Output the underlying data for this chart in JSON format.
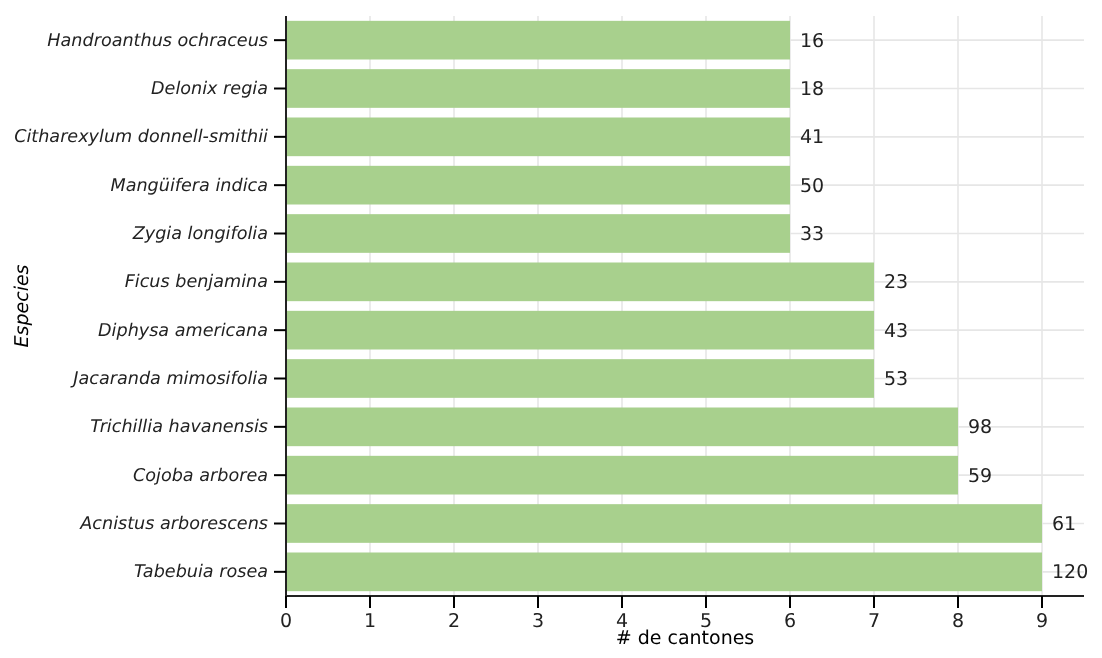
{
  "chart_data": {
    "type": "bar",
    "orientation": "horizontal",
    "xlabel": "# de cantones",
    "ylabel": "Especies",
    "categories": [
      "Handroanthus ochraceus",
      "Delonix regia",
      "Citharexylum donnell-smithii",
      "Mangüifera indica",
      "Zygia longifolia",
      "Ficus benjamina",
      "Diphysa americana",
      "Jacaranda mimosifolia",
      "Trichillia havanensis",
      "Cojoba arborea",
      "Acnistus arborescens",
      "Tabebuia rosea"
    ],
    "values": [
      6,
      6,
      6,
      6,
      6,
      7,
      7,
      7,
      8,
      8,
      9,
      9
    ],
    "annotations": [
      {
        "text": "16",
        "x": 6,
        "y": "Handroanthus ochraceus"
      },
      {
        "text": "18",
        "x": 6,
        "y": "Delonix regia"
      },
      {
        "text": "41",
        "x": 6,
        "y": "Citharexylum donnell-smithii"
      },
      {
        "text": "50",
        "x": 6,
        "y": "Mangüifera indica"
      },
      {
        "text": "33",
        "x": 6,
        "y": "Zygia longifolia"
      },
      {
        "text": "23",
        "x": 7,
        "y": "Ficus benjamina"
      },
      {
        "text": "43",
        "x": 7,
        "y": "Diphysa americana"
      },
      {
        "text": "53",
        "x": 7,
        "y": "Jacaranda mimosifolia"
      },
      {
        "text": "98",
        "x": 8,
        "y": "Trichillia havanensis"
      },
      {
        "text": "59",
        "x": 8,
        "y": "Cojoba arborea"
      },
      {
        "text": "61",
        "x": 9,
        "y": "Acnistus arborescens"
      },
      {
        "text": "120",
        "x": 9,
        "y": "Tabebuia rosea"
      }
    ],
    "color": "#a8d08d",
    "xlim": [
      0,
      9.5
    ],
    "xticks": [
      0,
      1,
      2,
      3,
      4,
      5,
      6,
      7,
      8,
      9
    ],
    "grid": true
  }
}
